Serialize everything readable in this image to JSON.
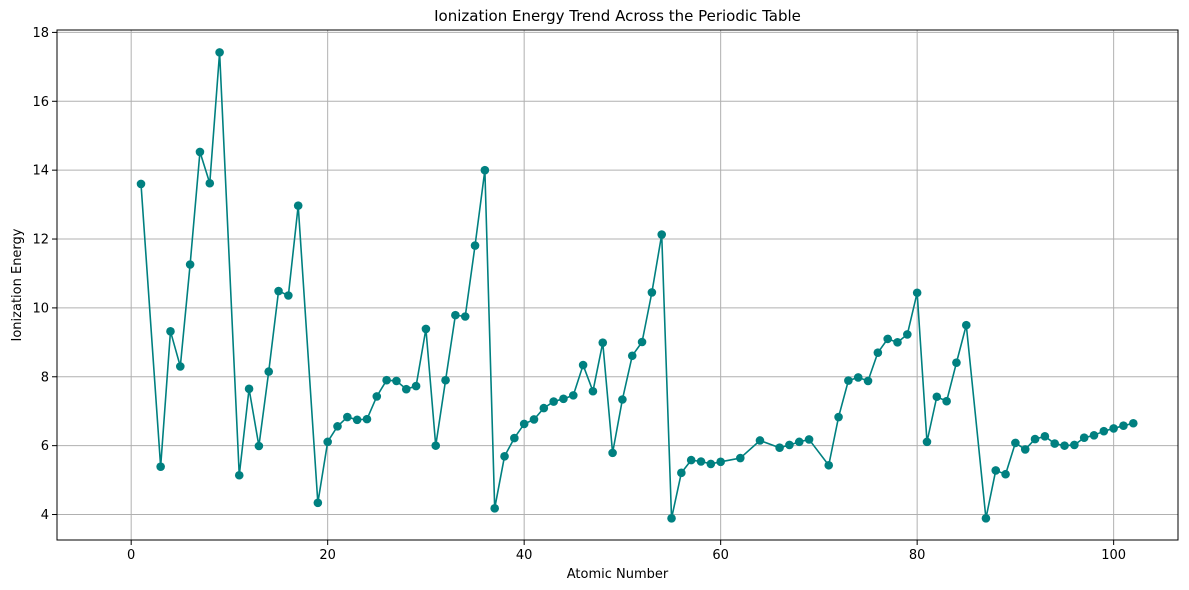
{
  "chart_data": {
    "type": "line",
    "title": "Ionization Energy Trend Across the Periodic Table",
    "xlabel": "Atomic Number",
    "ylabel": "Ionization Energy",
    "xlim": [
      -7.55,
      106.55
    ],
    "ylim": [
      3.26,
      18.07
    ],
    "xticks": [
      0,
      20,
      40,
      60,
      80,
      100
    ],
    "yticks": [
      4,
      6,
      8,
      10,
      12,
      14,
      16,
      18
    ],
    "grid": true,
    "color": "#008080",
    "marker": "circle",
    "series": [
      {
        "x": [
          1,
          3,
          4,
          5,
          6,
          7,
          8,
          9,
          11,
          12,
          13,
          14,
          15,
          16,
          17,
          19,
          20,
          21,
          22,
          23,
          24,
          25,
          26,
          27,
          28,
          29,
          30,
          31,
          32,
          33,
          34,
          35,
          36,
          37,
          38,
          39,
          40,
          41,
          42,
          43,
          44,
          45,
          46,
          47,
          48,
          49,
          50,
          51,
          52,
          53,
          54,
          55,
          56,
          57,
          58,
          59,
          60,
          62,
          64,
          66,
          67,
          68,
          69,
          71,
          72,
          73,
          74,
          75,
          76,
          77,
          78,
          79,
          80,
          81,
          82,
          83,
          84,
          85,
          87,
          88,
          89,
          90,
          91,
          92,
          93,
          94,
          95,
          96,
          97,
          98,
          99,
          100,
          101,
          102
        ],
        "y": [
          13.6,
          5.39,
          9.32,
          8.3,
          11.26,
          14.53,
          13.62,
          17.42,
          5.14,
          7.65,
          5.99,
          8.15,
          10.49,
          10.36,
          12.97,
          4.34,
          6.11,
          6.56,
          6.83,
          6.75,
          6.77,
          7.43,
          7.9,
          7.88,
          7.64,
          7.73,
          9.39,
          6.0,
          7.9,
          9.79,
          9.75,
          11.81,
          14.0,
          4.18,
          5.69,
          6.22,
          6.63,
          6.76,
          7.09,
          7.28,
          7.36,
          7.46,
          8.34,
          7.58,
          8.99,
          5.79,
          7.34,
          8.61,
          9.01,
          10.45,
          12.13,
          3.89,
          5.21,
          5.58,
          5.54,
          5.47,
          5.53,
          5.64,
          6.15,
          5.94,
          6.02,
          6.11,
          6.18,
          5.43,
          6.83,
          7.89,
          7.98,
          7.88,
          8.7,
          9.1,
          9.0,
          9.23,
          10.44,
          6.11,
          7.42,
          7.29,
          8.41,
          9.5,
          3.89,
          5.28,
          5.17,
          6.08,
          5.89,
          6.19,
          6.27,
          6.06,
          6.0,
          6.02,
          6.23,
          6.3,
          6.42,
          6.5,
          6.58,
          6.65
        ]
      }
    ]
  }
}
